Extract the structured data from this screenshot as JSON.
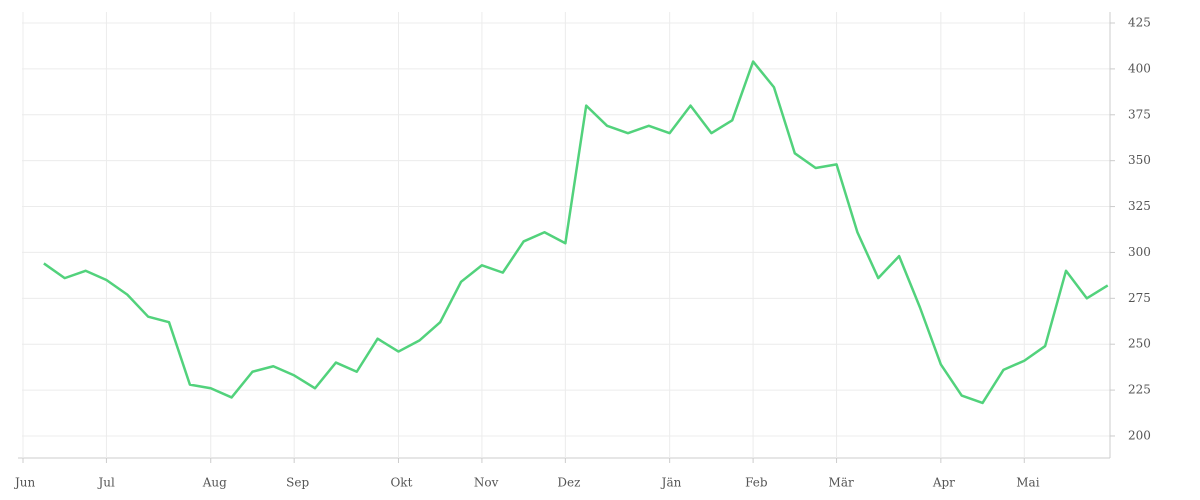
{
  "chart_data": {
    "type": "line",
    "categories": [
      "Jun",
      null,
      null,
      null,
      "Jul",
      null,
      null,
      null,
      null,
      "Aug",
      null,
      null,
      null,
      "Sep",
      null,
      null,
      null,
      null,
      "Okt",
      null,
      null,
      null,
      "Nov",
      null,
      null,
      null,
      "Dez",
      null,
      null,
      null,
      null,
      "Jän",
      null,
      null,
      null,
      "Feb",
      null,
      null,
      null,
      "Mär",
      null,
      null,
      null,
      null,
      "Apr",
      null,
      null,
      null,
      "Mai",
      null,
      null,
      null,
      null
    ],
    "series": [
      {
        "color": "#52d27c",
        "values": [
          null,
          294,
          286,
          290,
          285,
          277,
          265,
          262,
          228,
          226,
          221,
          235,
          238,
          233,
          226,
          240,
          235,
          253,
          246,
          252,
          262,
          284,
          293,
          289,
          306,
          311,
          305,
          380,
          369,
          365,
          369,
          365,
          380,
          365,
          372,
          404,
          390,
          354,
          346,
          348,
          311,
          286,
          298,
          270,
          239,
          222,
          218,
          236,
          241,
          249,
          290,
          275,
          282
        ]
      }
    ],
    "ylim": [
      188,
      431
    ],
    "yticks": [
      200,
      225,
      250,
      275,
      300,
      325,
      350,
      375,
      400,
      425
    ],
    "grid": true
  }
}
